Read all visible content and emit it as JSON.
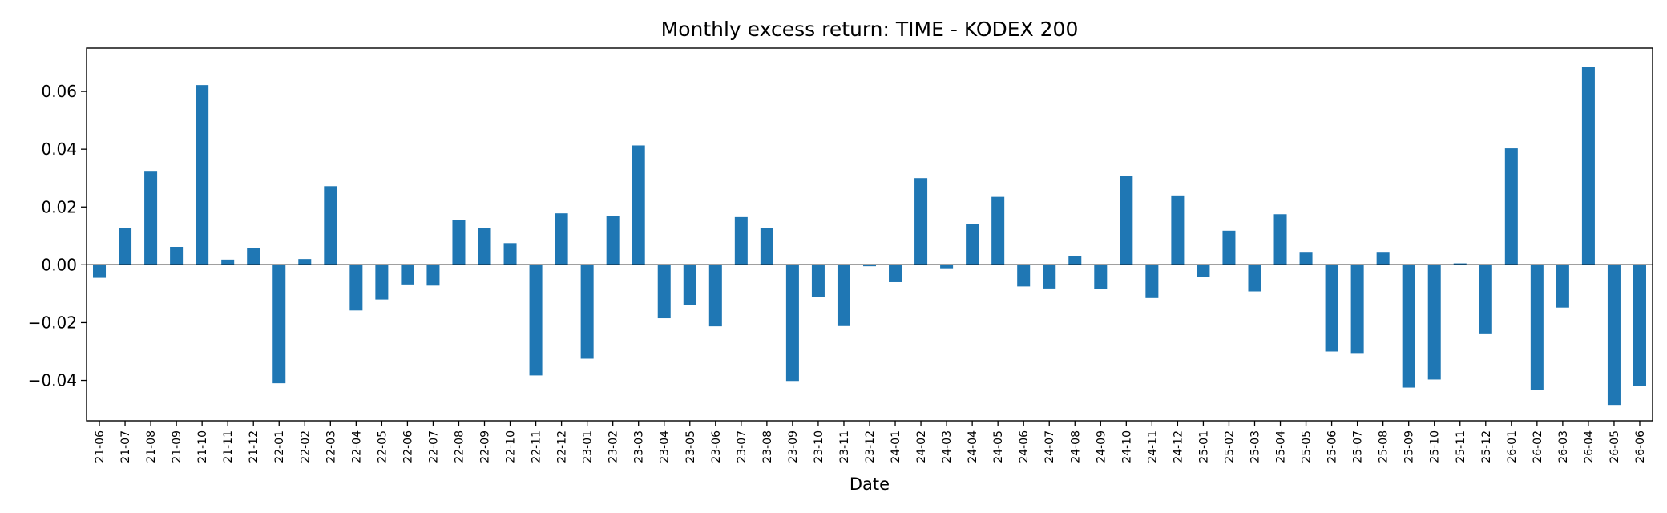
{
  "chart_data": {
    "type": "bar",
    "title": "Monthly excess return: TIME - KODEX 200",
    "xlabel": "Date",
    "ylabel": "",
    "ylim": [
      -0.054,
      0.075
    ],
    "yticks": [
      -0.04,
      -0.02,
      0.0,
      0.02,
      0.04,
      0.06
    ],
    "ytick_labels": [
      "−0.04",
      "−0.02",
      "0.00",
      "0.02",
      "0.04",
      "0.06"
    ],
    "grid": false,
    "bar_color": "#1f77b4",
    "zero_line_color": "#000000",
    "categories": [
      "21-06",
      "21-07",
      "21-08",
      "21-09",
      "21-10",
      "21-11",
      "21-12",
      "22-01",
      "22-02",
      "22-03",
      "22-04",
      "22-05",
      "22-06",
      "22-07",
      "22-08",
      "22-09",
      "22-10",
      "22-11",
      "22-12",
      "23-01",
      "23-02",
      "23-03",
      "23-04",
      "23-05",
      "23-06",
      "23-07",
      "23-08",
      "23-09",
      "23-10",
      "23-11",
      "23-12",
      "24-01",
      "24-02",
      "24-03",
      "24-04",
      "24-05",
      "24-06",
      "24-07",
      "24-08",
      "24-09",
      "24-10",
      "24-11",
      "24-12",
      "25-01",
      "25-02",
      "25-03",
      "25-04",
      "25-05",
      "25-06",
      "25-07",
      "25-08",
      "25-09",
      "25-10",
      "25-11",
      "25-12",
      "26-01",
      "26-02",
      "26-03",
      "26-04",
      "26-05",
      "26-06"
    ],
    "values": [
      -0.0045,
      0.0128,
      0.0325,
      0.0062,
      0.0622,
      0.0018,
      0.0058,
      -0.041,
      0.002,
      0.0272,
      -0.0158,
      -0.012,
      -0.0068,
      -0.0072,
      0.0155,
      0.0128,
      0.0075,
      -0.0383,
      0.0178,
      -0.0325,
      0.0168,
      0.0413,
      -0.0185,
      -0.0138,
      -0.0213,
      0.0165,
      0.0128,
      -0.0402,
      -0.0112,
      -0.0212,
      -0.0005,
      -0.006,
      0.03,
      -0.0012,
      0.0142,
      0.0235,
      -0.0075,
      -0.0082,
      0.003,
      -0.0085,
      0.0308,
      -0.0115,
      0.024,
      -0.0042,
      0.0118,
      -0.0092,
      0.0175,
      0.0042,
      -0.03,
      -0.0308,
      0.0042,
      -0.0425,
      -0.0397,
      0.0005,
      -0.024,
      0.0403,
      -0.0432,
      -0.0148,
      0.0685,
      -0.0485,
      -0.0418
    ]
  }
}
